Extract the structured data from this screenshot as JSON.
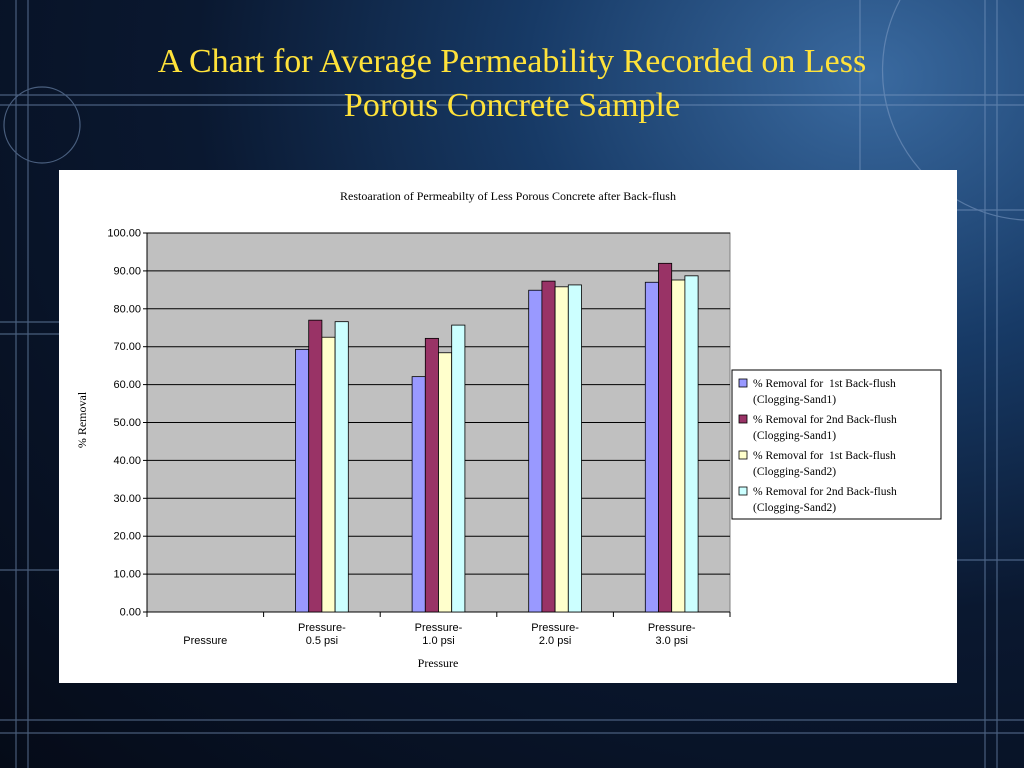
{
  "slide": {
    "title_line1": "A Chart for Average Permeability Recorded on Less",
    "title_line2": "Porous Concrete Sample"
  },
  "colors": {
    "plot_bg": "#c0c0c0",
    "title": "#ffe23a"
  },
  "chart_data": {
    "type": "bar",
    "title": "Restoaration of Permeabilty of Less Porous Concrete after Back-flush",
    "xlabel": "Pressure",
    "ylabel": "% Removal",
    "ylim": [
      0,
      100
    ],
    "ytick_step": 10,
    "ytick_decimals": 2,
    "grid": true,
    "legend_position": "right",
    "categories": [
      [
        "Pressure"
      ],
      [
        "Pressure-",
        "0.5 psi"
      ],
      [
        "Pressure-",
        "1.0 psi"
      ],
      [
        "Pressure-",
        "2.0 psi"
      ],
      [
        "Pressure-",
        "3.0 psi"
      ]
    ],
    "series": [
      {
        "name": [
          "% Removal for  1st Back-flush",
          "(Clogging-Sand1)"
        ],
        "color": "#9999ff",
        "values": [
          null,
          69.3,
          62.1,
          84.9,
          87.0
        ]
      },
      {
        "name": [
          "% Removal for 2nd Back-flush",
          "(Clogging-Sand1)"
        ],
        "color": "#993366",
        "values": [
          null,
          77.0,
          72.2,
          87.3,
          92.0
        ]
      },
      {
        "name": [
          "% Removal for  1st Back-flush",
          "(Clogging-Sand2)"
        ],
        "color": "#ffffcc",
        "values": [
          null,
          72.5,
          68.4,
          85.8,
          87.6
        ]
      },
      {
        "name": [
          "% Removal for 2nd Back-flush",
          "(Clogging-Sand2)"
        ],
        "color": "#ccffff",
        "values": [
          null,
          76.6,
          75.7,
          86.3,
          88.7
        ]
      }
    ]
  }
}
